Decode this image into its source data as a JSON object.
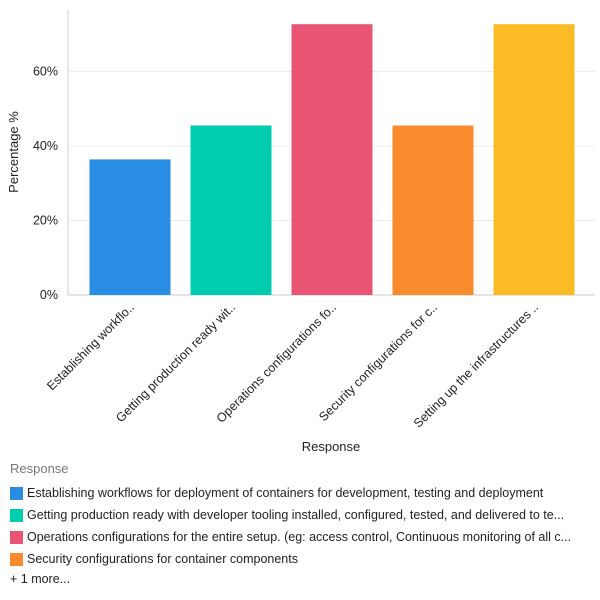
{
  "chart_data": {
    "type": "bar",
    "xlabel": "Response",
    "ylabel": "Percentage %",
    "ylim": [
      0,
      76
    ],
    "yticks": [
      "0%",
      "20%",
      "40%",
      "60%"
    ],
    "ytick_values": [
      0,
      20,
      40,
      60
    ],
    "grid": true,
    "categories": [
      "Establishing workflo..",
      "Getting production ready wit..",
      "Operations configurations fo..",
      "Security configurations for c..",
      "Setting up the infrastructures .."
    ],
    "values": [
      36.4,
      45.5,
      72.7,
      45.5,
      72.7
    ],
    "colors": [
      "#2a8de4",
      "#00cdb0",
      "#e95473",
      "#f98a2e",
      "#fbbb24"
    ]
  },
  "legend": {
    "title": "Response",
    "items": [
      {
        "label": "Establishing workflows for deployment of containers for development, testing and deployment",
        "color": "#2a8de4"
      },
      {
        "label": "Getting production ready with developer tooling installed, configured, tested, and delivered to te...",
        "color": "#00cdb0"
      },
      {
        "label": "Operations configurations for the entire setup. (eg: access control, Continuous monitoring of all c...",
        "color": "#e95473"
      },
      {
        "label": "Security configurations for container components",
        "color": "#f98a2e"
      }
    ],
    "more": "+ 1 more..."
  }
}
